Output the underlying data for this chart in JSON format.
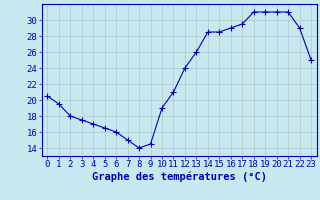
{
  "hours": [
    0,
    1,
    2,
    3,
    4,
    5,
    6,
    7,
    8,
    9,
    10,
    11,
    12,
    13,
    14,
    15,
    16,
    17,
    18,
    19,
    20,
    21,
    22,
    23
  ],
  "temperatures": [
    20.5,
    19.5,
    18.0,
    17.5,
    17.0,
    16.5,
    16.0,
    15.0,
    14.0,
    14.5,
    19.0,
    21.0,
    24.0,
    26.0,
    28.5,
    28.5,
    29.0,
    29.5,
    31.0,
    31.0,
    31.0,
    31.0,
    29.0,
    25.0
  ],
  "line_color": "#0000bb",
  "marker": "+",
  "marker_size": 4,
  "xlabel": "Graphe des températures (°C)",
  "xlabel_fontsize": 7.5,
  "ylabel_ticks": [
    14,
    16,
    18,
    20,
    22,
    24,
    26,
    28,
    30
  ],
  "ylim": [
    13.0,
    32.0
  ],
  "xlim": [
    -0.5,
    23.5
  ],
  "bg_color": "#c8e8f0",
  "grid_color": "#b0c8d0",
  "axis_color": "#0000bb",
  "tick_fontsize": 6.5
}
